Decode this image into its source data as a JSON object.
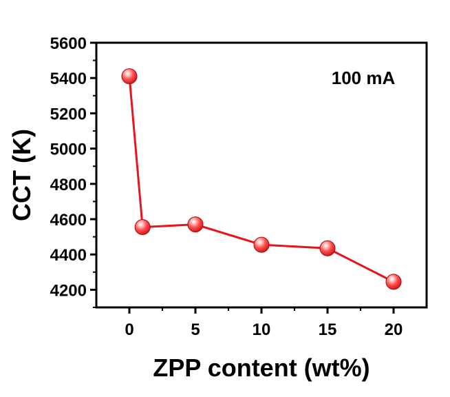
{
  "chart_data": {
    "type": "line",
    "xlabel": "ZPP content (wt%)",
    "ylabel": "CCT (K)",
    "annotation": "100 mA",
    "x": [
      0,
      1,
      5,
      10,
      15,
      20
    ],
    "y": [
      5410,
      4555,
      4570,
      4455,
      4435,
      4245
    ],
    "xlim": [
      -2.5,
      22.5
    ],
    "ylim": [
      4100,
      5600
    ],
    "xticks": [
      0,
      5,
      10,
      15,
      20
    ],
    "yticks": [
      4200,
      4400,
      4600,
      4800,
      5000,
      5200,
      5400,
      5600
    ],
    "grid": false,
    "line_color": "#e8141c",
    "marker_color": "#ff4a4a"
  }
}
